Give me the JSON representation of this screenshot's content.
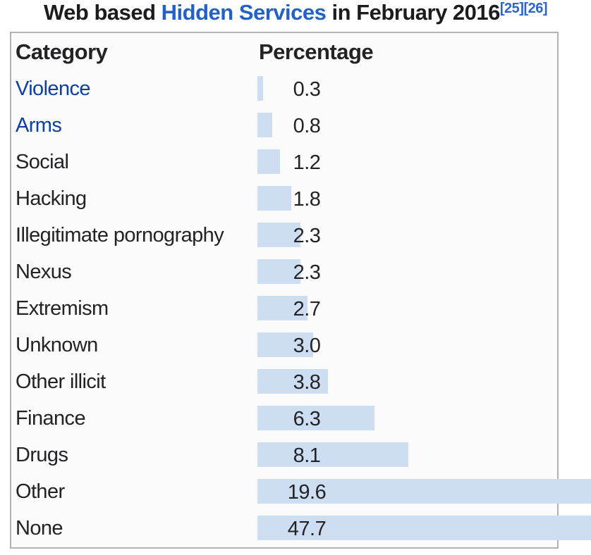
{
  "title": {
    "prefix": "Web based ",
    "link_text": "Hidden Services",
    "suffix": " in February 2016",
    "citations": [
      "[25]",
      "[26]"
    ]
  },
  "table": {
    "headers": {
      "category": "Category",
      "percentage": "Percentage"
    },
    "rows": [
      {
        "label": "Violence",
        "display": "0.3",
        "value": 0.3,
        "link": true
      },
      {
        "label": "Arms",
        "display": "0.8",
        "value": 0.8,
        "link": true
      },
      {
        "label": "Social",
        "display": "1.2",
        "value": 1.2,
        "link": false
      },
      {
        "label": "Hacking",
        "display": "1.8",
        "value": 1.8,
        "link": false
      },
      {
        "label": "Illegitimate pornography",
        "display": "2.3",
        "value": 2.3,
        "link": false
      },
      {
        "label": "Nexus",
        "display": "2.3",
        "value": 2.3,
        "link": false
      },
      {
        "label": "Extremism",
        "display": "2.7",
        "value": 2.7,
        "link": false
      },
      {
        "label": "Unknown",
        "display": "3.0",
        "value": 3.0,
        "link": false
      },
      {
        "label": "Other illicit",
        "display": "3.8",
        "value": 3.8,
        "link": false
      },
      {
        "label": "Finance",
        "display": "6.3",
        "value": 6.3,
        "link": false
      },
      {
        "label": "Drugs",
        "display": "8.1",
        "value": 8.1,
        "link": false
      },
      {
        "label": "Other",
        "display": "19.6",
        "value": 19.6,
        "link": false
      },
      {
        "label": "None",
        "display": "47.7",
        "value": 47.7,
        "link": false
      }
    ]
  },
  "chart_data": {
    "type": "bar",
    "orientation": "horizontal",
    "title": "Web based Hidden Services in February 2016",
    "categories": [
      "Violence",
      "Arms",
      "Social",
      "Hacking",
      "Illegitimate pornography",
      "Nexus",
      "Extremism",
      "Unknown",
      "Other illicit",
      "Finance",
      "Drugs",
      "Other",
      "None"
    ],
    "values": [
      0.3,
      0.8,
      1.2,
      1.8,
      2.3,
      2.3,
      2.7,
      3.0,
      3.8,
      6.3,
      8.1,
      19.6,
      47.7
    ],
    "xlabel": "Percentage",
    "ylabel": "Category",
    "value_unit": "percent",
    "grid": false,
    "legend": false,
    "bar_color": "#cddef2"
  },
  "colors": {
    "bar": "#cddef2",
    "table_border": "#b3b3b3",
    "text": "#232326",
    "table_link": "#0b3fa4",
    "title_link": "#2161c8",
    "citation_link": "#2a66c8"
  }
}
